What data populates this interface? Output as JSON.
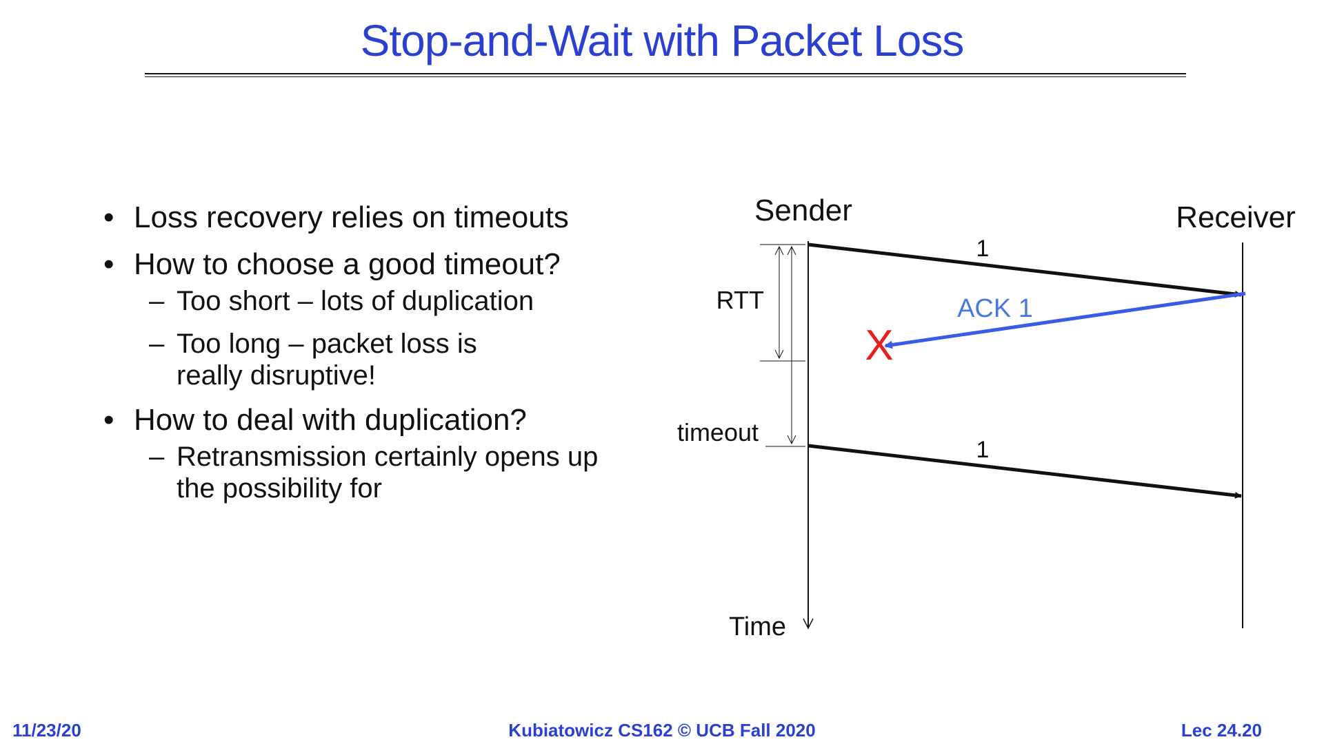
{
  "slide": {
    "title": "Stop-and-Wait with Packet Loss",
    "bullets": [
      {
        "text": "Loss recovery relies on timeouts",
        "sub": []
      },
      {
        "text": "How to choose a good timeout?",
        "sub": [
          "Too short – lots of duplication",
          "Too long – packet loss is really disruptive!"
        ]
      },
      {
        "text": "How to deal with duplication?",
        "sub": [
          "Retransmission certainly opens up the possibility for"
        ]
      }
    ]
  },
  "diagram": {
    "sender_label": "Sender",
    "receiver_label": "Receiver",
    "rtt_label": "RTT",
    "timeout_label": "timeout",
    "time_label": "Time",
    "packet1_label": "1",
    "ack_label": "ACK 1",
    "loss_mark": "X",
    "packet2_label": "1",
    "ack_color": "#3a5be6",
    "loss_color": "#e3221b"
  },
  "footer": {
    "date": "11/23/20",
    "course": "Kubiatowicz CS162 © UCB Fall 2020",
    "lecture": "Lec 24.20"
  }
}
